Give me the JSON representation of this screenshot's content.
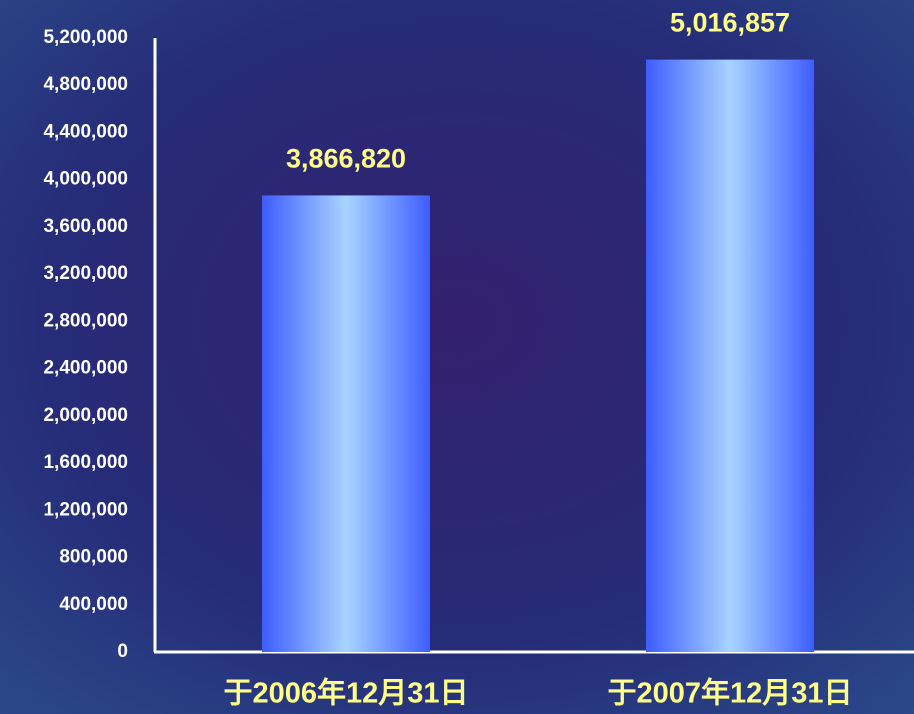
{
  "chart_data": {
    "type": "bar",
    "categories": [
      "于2006年12月31日",
      "于2007年12月31日"
    ],
    "values": [
      3866820,
      5016857
    ],
    "value_labels": [
      "3,866,820",
      "5,016,857"
    ],
    "color": "#3d5cff",
    "ylim": [
      0,
      5200000
    ],
    "yticks": [
      0,
      {
        "value": 400000,
        "label": "400,000"
      },
      {
        "value": 800000,
        "label": "800,000"
      },
      {
        "value": 1200000,
        "label": "1,200,000"
      },
      {
        "value": 1600000,
        "label": "1,600,000"
      },
      {
        "value": 2000000,
        "label": "2,000,000"
      },
      {
        "value": 2400000,
        "label": "2,400,000"
      },
      {
        "value": 2800000,
        "label": "2,800,000"
      },
      {
        "value": 3200000,
        "label": "3,200,000"
      },
      {
        "value": 3600000,
        "label": "3,600,000"
      },
      {
        "value": 4000000,
        "label": "4,000,000"
      },
      {
        "value": 4400000,
        "label": "4,400,000"
      },
      {
        "value": 4800000,
        "label": "4,800,000"
      },
      {
        "value": 5200000,
        "label": "5,200,000"
      }
    ],
    "grid": false
  }
}
